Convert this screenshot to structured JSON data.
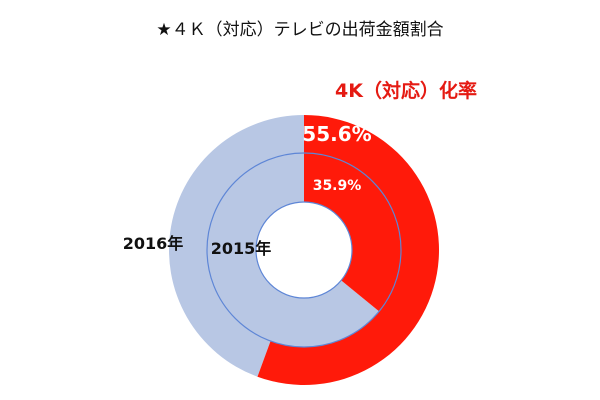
{
  "chart_data": {
    "type": "donut",
    "title": "★４Ｋ（対応）テレビの出荷金額割合",
    "subtitle": "4K（対応）化率",
    "series": [
      {
        "name": "2016年",
        "value_percent": 55.6,
        "label": "55.6%"
      },
      {
        "name": "2015年",
        "value_percent": 35.9,
        "label": "35.9%"
      }
    ],
    "colors": {
      "highlight": "#ff1a0a",
      "remainder": "#b8c7e4",
      "title_text": "#111111",
      "subtitle_text": "#e51a12",
      "ring_border": "#5e86d6"
    }
  }
}
